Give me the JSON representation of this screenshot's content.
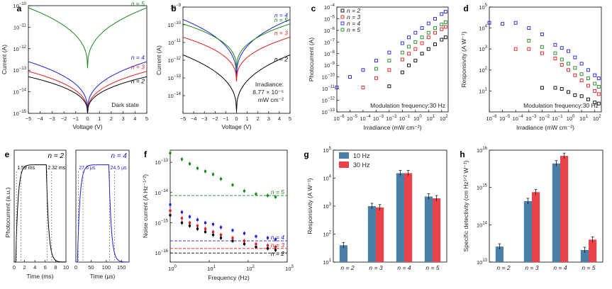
{
  "figure": {
    "panel_letters": [
      "a",
      "b",
      "c",
      "d",
      "e",
      "f",
      "g",
      "h"
    ]
  },
  "colors": {
    "n2": "#000000",
    "n3": "#e41a1c",
    "n4": "#1f1fd6",
    "n5": "#1a8a1a",
    "bar10": "#4a7fa8",
    "bar30": "#e8434a"
  },
  "chart_data": [
    {
      "id": "a",
      "type": "line",
      "xlabel": "Voltage (V)",
      "ylabel": "Current (A)",
      "xlim": [
        -5,
        5
      ],
      "ylim_log10": [
        -15,
        -10
      ],
      "yscale": "log",
      "xticks": [
        "−5",
        "−4",
        "−3",
        "−2",
        "−1",
        "0",
        "1",
        "2",
        "3",
        "4",
        "5"
      ],
      "yticks": [
        {
          "b": "10",
          "e": "−10"
        },
        {
          "b": "10",
          "e": "−11"
        },
        {
          "b": "10",
          "e": "−12"
        },
        {
          "b": "10",
          "e": "−13"
        },
        {
          "b": "10",
          "e": "−14"
        },
        {
          "b": "10",
          "e": "−15"
        }
      ],
      "annotation": "Dark state",
      "series": [
        {
          "name": "n = 5",
          "color": "#1a8a1a",
          "ends_log10": -10.1,
          "dip_log10": -12.9
        },
        {
          "name": "n = 4",
          "color": "#1f1fd6",
          "ends_log10": -12.6,
          "dip_log10": -14.9
        },
        {
          "name": "n = 3",
          "color": "#e41a1c",
          "ends_log10": -13.05,
          "dip_log10": -15.0
        },
        {
          "name": "n = 2",
          "color": "#000000",
          "ends_log10": -13.3,
          "dip_log10": -15.0
        }
      ]
    },
    {
      "id": "b",
      "type": "line",
      "xlabel": "Voltage (V)",
      "ylabel": "Current (A)",
      "xlim": [
        -5,
        5
      ],
      "ylim_log10": [
        -15,
        -9
      ],
      "yscale": "log",
      "xticks": [
        "−5",
        "−4",
        "−3",
        "−2",
        "−1",
        "0",
        "1",
        "2",
        "3",
        "4",
        "5"
      ],
      "yticks": [
        {
          "b": "10",
          "e": "−9"
        },
        {
          "b": "10",
          "e": "−10"
        },
        {
          "b": "10",
          "e": "−11"
        },
        {
          "b": "10",
          "e": "−12"
        },
        {
          "b": "10",
          "e": "−13"
        },
        {
          "b": "10",
          "e": "−14"
        }
      ],
      "annotation_lines": [
        "Irradiance:",
        "8.77 × 10⁻⁵",
        "mW cm⁻²"
      ],
      "series": [
        {
          "name": "n = 4",
          "color": "#1f1fd6",
          "ends_log10": -9.7,
          "dip_log10": -13.0
        },
        {
          "name": "n = 5",
          "color": "#1a8a1a",
          "ends_log10": -9.95,
          "dip_log10": -12.5
        },
        {
          "name": "n = 3",
          "color": "#e41a1c",
          "ends_log10": -10.7,
          "dip_log10": -13.2
        },
        {
          "name": "n = 2",
          "color": "#000000",
          "ends_log10": -11.7,
          "dip_log10": -14.9
        }
      ]
    },
    {
      "id": "c",
      "type": "scatter",
      "xlabel": "Irradiance (mW cm⁻²)",
      "ylabel": "Photocurrent (A)",
      "xscale": "log",
      "yscale": "log",
      "xlim_log10": [
        -6,
        2.5
      ],
      "ylim_log10": [
        -13,
        -4
      ],
      "xticks": [
        "−6",
        "−5",
        "−4",
        "−3",
        "−2",
        "−1",
        "0",
        "1",
        "2"
      ],
      "yticks": [
        "−4",
        "−5",
        "−6",
        "−7",
        "−8",
        "−9",
        "−10",
        "−11",
        "−12",
        "−13"
      ],
      "legend": [
        "n = 2",
        "n = 3",
        "n = 4",
        "n = 5"
      ],
      "annotation": "Modulation frequency:30 Hz",
      "series": [
        {
          "name": "n = 2",
          "color": "#000000",
          "points": [
            [
              -2,
              -10.8
            ],
            [
              -1,
              -9.6
            ],
            [
              -0.5,
              -9.0
            ],
            [
              0,
              -8.6
            ],
            [
              0.5,
              -8.0
            ],
            [
              1,
              -7.6
            ],
            [
              1.5,
              -7.2
            ],
            [
              2,
              -6.8
            ],
            [
              2.3,
              -6.6
            ]
          ]
        },
        {
          "name": "n = 3",
          "color": "#e41a1c",
          "points": [
            [
              -4,
              -10.9
            ],
            [
              -3,
              -10.1
            ],
            [
              -2,
              -9.4
            ],
            [
              -1,
              -8.5
            ],
            [
              -0.5,
              -8.0
            ],
            [
              0,
              -7.6
            ],
            [
              0.5,
              -7.1
            ],
            [
              1,
              -6.6
            ],
            [
              1.5,
              -6.2
            ],
            [
              2,
              -5.9
            ],
            [
              2.3,
              -5.7
            ]
          ]
        },
        {
          "name": "n = 4",
          "color": "#1f1fd6",
          "points": [
            [
              -6,
              -10.9
            ],
            [
              -5,
              -10.0
            ],
            [
              -4,
              -9.4
            ],
            [
              -3,
              -8.6
            ],
            [
              -2,
              -7.9
            ],
            [
              -1,
              -7.1
            ],
            [
              -0.5,
              -6.6
            ],
            [
              0,
              -6.2
            ],
            [
              0.5,
              -5.8
            ],
            [
              1,
              -5.4
            ],
            [
              1.5,
              -5.0
            ],
            [
              2,
              -4.6
            ],
            [
              2.3,
              -4.4
            ]
          ]
        },
        {
          "name": "n = 5",
          "color": "#1a8a1a",
          "points": [
            [
              -3,
              -9.3
            ],
            [
              -2,
              -8.6
            ],
            [
              -1,
              -7.9
            ],
            [
              -0.5,
              -7.4
            ],
            [
              0,
              -7.0
            ],
            [
              0.5,
              -6.6
            ],
            [
              1,
              -6.2
            ],
            [
              1.5,
              -5.8
            ],
            [
              2,
              -5.5
            ],
            [
              2.3,
              -5.3
            ]
          ]
        }
      ]
    },
    {
      "id": "d",
      "type": "scatter",
      "xlabel": "Irradiance (mW cm⁻²)",
      "ylabel": "Responsivity (A W⁻¹)",
      "xscale": "log",
      "yscale": "log",
      "xlim_log10": [
        -6,
        2.5
      ],
      "ylim_log10": [
        0,
        5
      ],
      "xticks": [
        "−6",
        "−5",
        "−4",
        "−3",
        "−2",
        "−1",
        "0",
        "1",
        "2"
      ],
      "yticks": [
        "5",
        "4",
        "3",
        "2",
        "1"
      ],
      "annotation": "Modulation frequency:30 Hz",
      "series": [
        {
          "name": "n = 4",
          "color": "#1f1fd6",
          "points": [
            [
              -6,
              4.25
            ],
            [
              -5,
              4.2
            ],
            [
              -4,
              4.25
            ],
            [
              -3,
              4.0
            ],
            [
              -2,
              3.7
            ],
            [
              -1,
              3.2
            ],
            [
              -0.5,
              3.05
            ],
            [
              0,
              2.9
            ],
            [
              0.5,
              2.6
            ],
            [
              1,
              2.3
            ],
            [
              1.5,
              2.0
            ],
            [
              2,
              1.75
            ],
            [
              2.3,
              1.6
            ]
          ]
        },
        {
          "name": "n = 5",
          "color": "#1a8a1a",
          "points": [
            [
              -3,
              3.4
            ],
            [
              -2,
              3.1
            ],
            [
              -1,
              2.8
            ],
            [
              -0.5,
              2.5
            ],
            [
              0,
              2.3
            ],
            [
              0.5,
              2.1
            ],
            [
              1,
              1.8
            ],
            [
              1.5,
              1.6
            ],
            [
              2,
              1.35
            ],
            [
              2.3,
              1.2
            ]
          ]
        },
        {
          "name": "n = 3",
          "color": "#e41a1c",
          "points": [
            [
              -4,
              3.0
            ],
            [
              -3,
              3.0
            ],
            [
              -2,
              2.8
            ],
            [
              -1,
              2.55
            ],
            [
              -0.5,
              2.25
            ],
            [
              0,
              2.0
            ],
            [
              0.5,
              1.75
            ],
            [
              1,
              1.5
            ],
            [
              1.5,
              1.25
            ],
            [
              2,
              1.0
            ],
            [
              2.3,
              0.85
            ]
          ]
        },
        {
          "name": "n = 2",
          "color": "#000000",
          "points": [
            [
              -2,
              1.15
            ],
            [
              -1,
              1.15
            ],
            [
              -0.5,
              1.1
            ],
            [
              0,
              0.95
            ],
            [
              0.5,
              0.8
            ],
            [
              1,
              0.75
            ],
            [
              1.5,
              0.6
            ],
            [
              2,
              0.45
            ],
            [
              2.3,
              0.4
            ]
          ]
        }
      ]
    },
    {
      "id": "e",
      "type": "line",
      "ylabel": "Photocurrent (a.u.)",
      "subplots": [
        {
          "xlabel": "Time (ms)",
          "xticks": [
            "0",
            "2",
            "4",
            "6",
            "8",
            "10"
          ],
          "xlim": [
            0,
            10
          ],
          "label": "n = 2",
          "color": "#000000",
          "rise": "1.59 ms",
          "fall": "2.32 ms"
        },
        {
          "xlabel": "Time (μs)",
          "xticks": [
            "0",
            "50",
            "100",
            "150"
          ],
          "xlim": [
            0,
            175
          ],
          "label": "n = 4",
          "color": "#1f1fd6",
          "rise": "27.6 μs",
          "fall": "24.5 μs"
        }
      ]
    },
    {
      "id": "f",
      "type": "scatter",
      "xlabel": "Frequency (Hz)",
      "ylabel": "Noise current (A Hz⁻¹ᐟ²)",
      "xscale": "log",
      "yscale": "log",
      "xlim_log10": [
        0,
        3
      ],
      "ylim_log10": [
        -16.3,
        -12.6
      ],
      "xticks": [
        "0",
        "1",
        "2",
        "3"
      ],
      "yticks": [
        "−13",
        "−14",
        "−15",
        "−16"
      ],
      "series": [
        {
          "name": "n = 5",
          "color": "#1a8a1a",
          "shot_noise_log10": -14.1,
          "points": [
            [
              0,
              -12.7
            ],
            [
              0.3,
              -12.9
            ],
            [
              0.5,
              -13.05
            ],
            [
              0.7,
              -13.2
            ],
            [
              0.9,
              -13.3
            ],
            [
              1.1,
              -13.4
            ],
            [
              1.3,
              -13.55
            ],
            [
              1.6,
              -13.75
            ],
            [
              1.9,
              -13.95
            ],
            [
              2.2,
              -14.05
            ],
            [
              2.5,
              -14.1
            ],
            [
              2.7,
              -14.15
            ]
          ]
        },
        {
          "name": "n = 4",
          "color": "#1f1fd6",
          "shot_noise_log10": -15.6,
          "points": [
            [
              0,
              -14.4
            ],
            [
              0.3,
              -14.65
            ],
            [
              0.5,
              -14.8
            ],
            [
              0.7,
              -14.9
            ],
            [
              0.9,
              -15.0
            ],
            [
              1.1,
              -15.05
            ],
            [
              1.3,
              -15.15
            ],
            [
              1.6,
              -15.25
            ],
            [
              1.9,
              -15.35
            ],
            [
              2.2,
              -15.45
            ],
            [
              2.5,
              -15.5
            ],
            [
              2.7,
              -15.55
            ]
          ]
        },
        {
          "name": "n = 3",
          "color": "#e41a1c",
          "shot_noise_log10": -15.85,
          "points": [
            [
              0,
              -14.6
            ],
            [
              0.3,
              -14.85
            ],
            [
              0.5,
              -15.0
            ],
            [
              0.7,
              -15.1
            ],
            [
              0.9,
              -15.2
            ],
            [
              1.1,
              -15.3
            ],
            [
              1.3,
              -15.4
            ],
            [
              1.6,
              -15.5
            ],
            [
              1.9,
              -15.6
            ],
            [
              2.2,
              -15.7
            ],
            [
              2.5,
              -15.75
            ],
            [
              2.7,
              -15.8
            ]
          ]
        },
        {
          "name": "n = 2",
          "color": "#000000",
          "shot_noise_log10": -16.0,
          "points": [
            [
              0,
              -14.75
            ],
            [
              0.3,
              -15.0
            ],
            [
              0.5,
              -15.1
            ],
            [
              0.7,
              -15.2
            ],
            [
              0.9,
              -15.3
            ],
            [
              1.1,
              -15.4
            ],
            [
              1.3,
              -15.5
            ],
            [
              1.6,
              -15.6
            ],
            [
              1.9,
              -15.7
            ],
            [
              2.2,
              -15.8
            ],
            [
              2.5,
              -15.85
            ],
            [
              2.7,
              -15.9
            ]
          ]
        }
      ]
    },
    {
      "id": "g",
      "type": "bar",
      "ylabel": "Responsivity (A W⁻¹)",
      "yscale": "log",
      "ylim_log10": [
        1,
        5
      ],
      "yticks": [
        "5",
        "4",
        "3",
        "2",
        "1"
      ],
      "categories": [
        "n = 2",
        "n = 3",
        "n = 4",
        "n = 5"
      ],
      "series": [
        {
          "name": "10 Hz",
          "color": "#4a7fa8",
          "values": [
            40,
            1000,
            15000,
            2200
          ]
        },
        {
          "name": "30 Hz",
          "color": "#e8434a",
          "values": [
            null,
            900,
            15000,
            1900
          ]
        }
      ]
    },
    {
      "id": "h",
      "type": "bar",
      "ylabel": "Specific detectivity (cm Hz¹ᐟ² W⁻¹)",
      "yscale": "log",
      "ylim_log10": [
        13,
        16
      ],
      "yticks": [
        "16",
        "15",
        "14",
        "13"
      ],
      "categories": [
        "n = 2",
        "n = 3",
        "n = 4",
        "n = 5"
      ],
      "series": [
        {
          "name": "10 Hz",
          "color": "#4a7fa8",
          "values": [
            26000000000000.0,
            430000000000000.0,
            4400000000000000.0,
            21000000000000.0
          ]
        },
        {
          "name": "30 Hz",
          "color": "#e8434a",
          "values": [
            null,
            750000000000000.0,
            7000000000000000.0,
            40000000000000.0
          ]
        }
      ]
    }
  ]
}
